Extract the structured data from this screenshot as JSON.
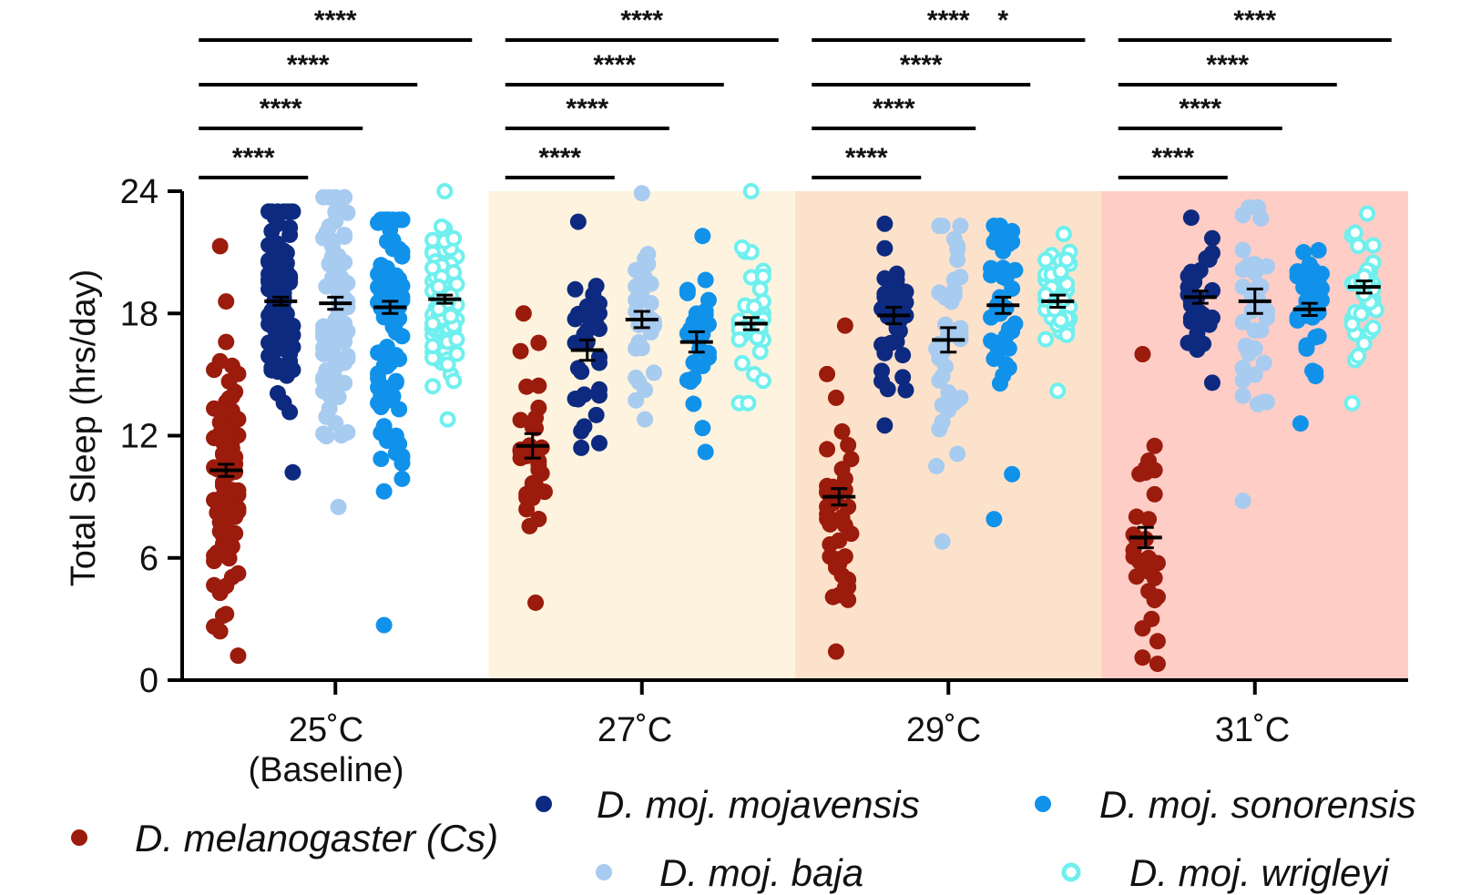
{
  "chart_data": {
    "type": "scatter",
    "subtype": "dot-plot-with-mean-sem",
    "ylabel": "Total Sleep (hrs/day)",
    "ylim": [
      0,
      24
    ],
    "yticks": [
      0,
      6,
      12,
      18,
      24
    ],
    "groups": [
      {
        "label": "25˚C",
        "sublabel": "(Baseline)",
        "background": "#ffffff"
      },
      {
        "label": "27˚C",
        "sublabel": "",
        "background": "#fdf3df"
      },
      {
        "label": "29˚C",
        "sublabel": "",
        "background": "#fde2cb"
      },
      {
        "label": "31˚C",
        "sublabel": "",
        "background": "#fdcdc6"
      }
    ],
    "series": [
      {
        "name": "D. melanogaster (Cs)",
        "color": "#9b1b0c",
        "hollow": false,
        "means": [
          10.3,
          11.5,
          9.0,
          7.0
        ],
        "sem": [
          0.3,
          0.6,
          0.4,
          0.5
        ],
        "ranges": [
          [
            1.2,
            21.3
          ],
          [
            3.8,
            18.0
          ],
          [
            1.4,
            17.4
          ],
          [
            0.8,
            16.0
          ]
        ],
        "counts": [
          90,
          32,
          45,
          30
        ]
      },
      {
        "name": "D. moj. mojavensis",
        "color": "#0d2a80",
        "hollow": false,
        "means": [
          18.6,
          16.2,
          17.9,
          18.8
        ],
        "sem": [
          0.2,
          0.5,
          0.4,
          0.3
        ],
        "ranges": [
          [
            10.2,
            23.0
          ],
          [
            11.4,
            22.5
          ],
          [
            12.5,
            22.4
          ],
          [
            14.6,
            22.7
          ]
        ],
        "counts": [
          90,
          32,
          40,
          34
        ]
      },
      {
        "name": "D. moj. baja",
        "color": "#a8cbf0",
        "hollow": false,
        "means": [
          18.5,
          17.7,
          16.7,
          18.6
        ],
        "sem": [
          0.3,
          0.4,
          0.6,
          0.6
        ],
        "ranges": [
          [
            8.5,
            23.7
          ],
          [
            12.8,
            23.9
          ],
          [
            6.8,
            22.3
          ],
          [
            8.8,
            23.2
          ]
        ],
        "counts": [
          90,
          32,
          40,
          34
        ]
      },
      {
        "name": "D. moj. sonorensis",
        "color": "#1192ea",
        "hollow": false,
        "means": [
          18.3,
          16.6,
          18.4,
          18.2
        ],
        "sem": [
          0.3,
          0.5,
          0.4,
          0.3
        ],
        "ranges": [
          [
            2.7,
            22.6
          ],
          [
            11.2,
            21.8
          ],
          [
            7.9,
            22.3
          ],
          [
            12.6,
            21.1
          ]
        ],
        "counts": [
          90,
          32,
          40,
          34
        ]
      },
      {
        "name": "D. moj. wrigleyi",
        "color": "#6ff0ee",
        "hollow": true,
        "means": [
          18.7,
          17.5,
          18.6,
          19.3
        ],
        "sem": [
          0.2,
          0.3,
          0.3,
          0.3
        ],
        "ranges": [
          [
            12.8,
            24.0
          ],
          [
            13.6,
            24.0
          ],
          [
            14.2,
            21.9
          ],
          [
            13.6,
            22.9
          ]
        ],
        "counts": [
          90,
          32,
          40,
          34
        ]
      }
    ],
    "significance": [
      {
        "group": 0,
        "from": 0,
        "to": 1,
        "label": "****"
      },
      {
        "group": 0,
        "from": 0,
        "to": 2,
        "label": "****"
      },
      {
        "group": 0,
        "from": 0,
        "to": 3,
        "label": "****"
      },
      {
        "group": 0,
        "from": 0,
        "to": 4,
        "label": "****"
      },
      {
        "group": 1,
        "from": 0,
        "to": 1,
        "label": "****"
      },
      {
        "group": 1,
        "from": 0,
        "to": 2,
        "label": "****"
      },
      {
        "group": 1,
        "from": 0,
        "to": 3,
        "label": "****"
      },
      {
        "group": 1,
        "from": 0,
        "to": 4,
        "label": "****"
      },
      {
        "group": 2,
        "from": 0,
        "to": 1,
        "label": "****"
      },
      {
        "group": 2,
        "from": 0,
        "to": 2,
        "label": "****"
      },
      {
        "group": 2,
        "from": 0,
        "to": 3,
        "label": "****"
      },
      {
        "group": 2,
        "from": 0,
        "to": 4,
        "label": "****"
      },
      {
        "group": 2,
        "from": 2,
        "to": 4,
        "label": "*"
      },
      {
        "group": 3,
        "from": 0,
        "to": 1,
        "label": "****"
      },
      {
        "group": 3,
        "from": 0,
        "to": 2,
        "label": "****"
      },
      {
        "group": 3,
        "from": 0,
        "to": 3,
        "label": "****"
      },
      {
        "group": 3,
        "from": 0,
        "to": 4,
        "label": "****"
      }
    ],
    "legend_position": "bottom"
  }
}
